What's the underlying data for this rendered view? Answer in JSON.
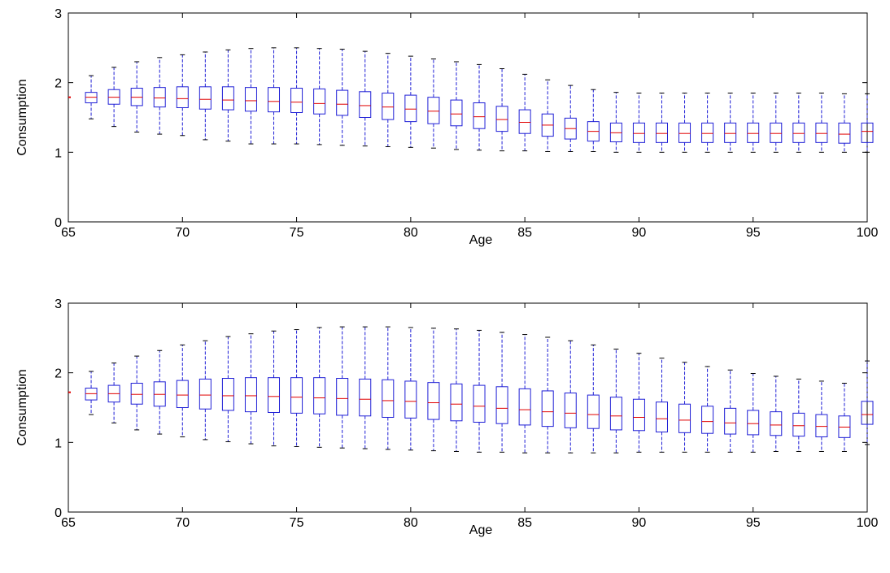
{
  "colors": {
    "box": "#1f1fd6",
    "median": "#e00000",
    "axis": "#000000",
    "background": "#ffffff"
  },
  "chart_data": [
    {
      "type": "boxplot",
      "xlabel": "Age",
      "ylabel": "Consumption",
      "xlim": [
        65,
        100
      ],
      "ylim": [
        0,
        3
      ],
      "xticks": [
        65,
        70,
        75,
        80,
        85,
        90,
        95,
        100
      ],
      "yticks": [
        0,
        1,
        2,
        3
      ],
      "grid": false,
      "points": [
        {
          "x": 65,
          "median": 1.79
        },
        {
          "x": 66,
          "min": 1.48,
          "q1": 1.71,
          "median": 1.79,
          "q3": 1.86,
          "max": 2.1
        },
        {
          "x": 67,
          "min": 1.37,
          "q1": 1.69,
          "median": 1.79,
          "q3": 1.9,
          "max": 2.22
        },
        {
          "x": 68,
          "min": 1.29,
          "q1": 1.67,
          "median": 1.79,
          "q3": 1.92,
          "max": 2.3
        },
        {
          "x": 69,
          "min": 1.26,
          "q1": 1.65,
          "median": 1.78,
          "q3": 1.93,
          "max": 2.36
        },
        {
          "x": 70,
          "min": 1.24,
          "q1": 1.64,
          "median": 1.77,
          "q3": 1.94,
          "max": 2.4
        },
        {
          "x": 71,
          "min": 1.18,
          "q1": 1.62,
          "median": 1.76,
          "q3": 1.94,
          "max": 2.44
        },
        {
          "x": 72,
          "min": 1.16,
          "q1": 1.61,
          "median": 1.75,
          "q3": 1.94,
          "max": 2.47
        },
        {
          "x": 73,
          "min": 1.12,
          "q1": 1.59,
          "median": 1.74,
          "q3": 1.93,
          "max": 2.49
        },
        {
          "x": 74,
          "min": 1.12,
          "q1": 1.58,
          "median": 1.73,
          "q3": 1.93,
          "max": 2.5
        },
        {
          "x": 75,
          "min": 1.12,
          "q1": 1.57,
          "median": 1.72,
          "q3": 1.92,
          "max": 2.5
        },
        {
          "x": 76,
          "min": 1.11,
          "q1": 1.55,
          "median": 1.7,
          "q3": 1.91,
          "max": 2.49
        },
        {
          "x": 77,
          "min": 1.1,
          "q1": 1.53,
          "median": 1.69,
          "q3": 1.89,
          "max": 2.48
        },
        {
          "x": 78,
          "min": 1.09,
          "q1": 1.5,
          "median": 1.67,
          "q3": 1.87,
          "max": 2.45
        },
        {
          "x": 79,
          "min": 1.08,
          "q1": 1.47,
          "median": 1.65,
          "q3": 1.85,
          "max": 2.42
        },
        {
          "x": 80,
          "min": 1.07,
          "q1": 1.44,
          "median": 1.62,
          "q3": 1.82,
          "max": 2.38
        },
        {
          "x": 81,
          "min": 1.06,
          "q1": 1.41,
          "median": 1.59,
          "q3": 1.79,
          "max": 2.34
        },
        {
          "x": 82,
          "min": 1.04,
          "q1": 1.38,
          "median": 1.55,
          "q3": 1.75,
          "max": 2.3
        },
        {
          "x": 83,
          "min": 1.03,
          "q1": 1.34,
          "median": 1.51,
          "q3": 1.71,
          "max": 2.26
        },
        {
          "x": 84,
          "min": 1.02,
          "q1": 1.3,
          "median": 1.47,
          "q3": 1.66,
          "max": 2.2
        },
        {
          "x": 85,
          "min": 1.02,
          "q1": 1.27,
          "median": 1.43,
          "q3": 1.61,
          "max": 2.12
        },
        {
          "x": 86,
          "min": 1.01,
          "q1": 1.23,
          "median": 1.39,
          "q3": 1.55,
          "max": 2.04
        },
        {
          "x": 87,
          "min": 1.01,
          "q1": 1.19,
          "median": 1.34,
          "q3": 1.49,
          "max": 1.96
        },
        {
          "x": 88,
          "min": 1.01,
          "q1": 1.16,
          "median": 1.3,
          "q3": 1.44,
          "max": 1.9
        },
        {
          "x": 89,
          "min": 1.0,
          "q1": 1.15,
          "median": 1.28,
          "q3": 1.42,
          "max": 1.86
        },
        {
          "x": 90,
          "min": 1.0,
          "q1": 1.14,
          "median": 1.27,
          "q3": 1.42,
          "max": 1.85
        },
        {
          "x": 91,
          "min": 1.0,
          "q1": 1.14,
          "median": 1.27,
          "q3": 1.42,
          "max": 1.85
        },
        {
          "x": 92,
          "min": 1.0,
          "q1": 1.14,
          "median": 1.27,
          "q3": 1.42,
          "max": 1.85
        },
        {
          "x": 93,
          "min": 1.0,
          "q1": 1.14,
          "median": 1.27,
          "q3": 1.42,
          "max": 1.85
        },
        {
          "x": 94,
          "min": 1.0,
          "q1": 1.14,
          "median": 1.27,
          "q3": 1.42,
          "max": 1.85
        },
        {
          "x": 95,
          "min": 1.0,
          "q1": 1.14,
          "median": 1.27,
          "q3": 1.42,
          "max": 1.85
        },
        {
          "x": 96,
          "min": 1.0,
          "q1": 1.14,
          "median": 1.27,
          "q3": 1.42,
          "max": 1.85
        },
        {
          "x": 97,
          "min": 1.0,
          "q1": 1.14,
          "median": 1.27,
          "q3": 1.42,
          "max": 1.85
        },
        {
          "x": 98,
          "min": 1.0,
          "q1": 1.14,
          "median": 1.27,
          "q3": 1.42,
          "max": 1.85
        },
        {
          "x": 99,
          "min": 1.0,
          "q1": 1.13,
          "median": 1.26,
          "q3": 1.42,
          "max": 1.84
        },
        {
          "x": 100,
          "min": 1.0,
          "q1": 1.14,
          "median": 1.3,
          "q3": 1.42,
          "max": 1.84
        }
      ]
    },
    {
      "type": "boxplot",
      "xlabel": "Age",
      "ylabel": "Consumption",
      "xlim": [
        65,
        100
      ],
      "ylim": [
        0,
        3
      ],
      "xticks": [
        65,
        70,
        75,
        80,
        85,
        90,
        95,
        100
      ],
      "yticks": [
        0,
        1,
        2,
        3
      ],
      "grid": false,
      "points": [
        {
          "x": 65,
          "median": 1.72
        },
        {
          "x": 66,
          "min": 1.4,
          "q1": 1.61,
          "median": 1.7,
          "q3": 1.78,
          "max": 2.02
        },
        {
          "x": 67,
          "min": 1.28,
          "q1": 1.58,
          "median": 1.7,
          "q3": 1.82,
          "max": 2.14
        },
        {
          "x": 68,
          "min": 1.18,
          "q1": 1.55,
          "median": 1.69,
          "q3": 1.85,
          "max": 2.24
        },
        {
          "x": 69,
          "min": 1.12,
          "q1": 1.52,
          "median": 1.69,
          "q3": 1.87,
          "max": 2.32
        },
        {
          "x": 70,
          "min": 1.08,
          "q1": 1.5,
          "median": 1.68,
          "q3": 1.89,
          "max": 2.4
        },
        {
          "x": 71,
          "min": 1.04,
          "q1": 1.48,
          "median": 1.68,
          "q3": 1.91,
          "max": 2.46
        },
        {
          "x": 72,
          "min": 1.01,
          "q1": 1.46,
          "median": 1.67,
          "q3": 1.92,
          "max": 2.52
        },
        {
          "x": 73,
          "min": 0.98,
          "q1": 1.44,
          "median": 1.67,
          "q3": 1.93,
          "max": 2.56
        },
        {
          "x": 74,
          "min": 0.95,
          "q1": 1.43,
          "median": 1.66,
          "q3": 1.93,
          "max": 2.6
        },
        {
          "x": 75,
          "min": 0.94,
          "q1": 1.42,
          "median": 1.65,
          "q3": 1.93,
          "max": 2.62
        },
        {
          "x": 76,
          "min": 0.93,
          "q1": 1.41,
          "median": 1.64,
          "q3": 1.93,
          "max": 2.65
        },
        {
          "x": 77,
          "min": 0.92,
          "q1": 1.39,
          "median": 1.63,
          "q3": 1.92,
          "max": 2.66
        },
        {
          "x": 78,
          "min": 0.91,
          "q1": 1.38,
          "median": 1.62,
          "q3": 1.91,
          "max": 2.66
        },
        {
          "x": 79,
          "min": 0.9,
          "q1": 1.36,
          "median": 1.6,
          "q3": 1.9,
          "max": 2.66
        },
        {
          "x": 80,
          "min": 0.89,
          "q1": 1.35,
          "median": 1.59,
          "q3": 1.88,
          "max": 2.65
        },
        {
          "x": 81,
          "min": 0.88,
          "q1": 1.33,
          "median": 1.57,
          "q3": 1.86,
          "max": 2.64
        },
        {
          "x": 82,
          "min": 0.87,
          "q1": 1.31,
          "median": 1.55,
          "q3": 1.84,
          "max": 2.63
        },
        {
          "x": 83,
          "min": 0.86,
          "q1": 1.29,
          "median": 1.52,
          "q3": 1.82,
          "max": 2.61
        },
        {
          "x": 84,
          "min": 0.86,
          "q1": 1.27,
          "median": 1.49,
          "q3": 1.8,
          "max": 2.58
        },
        {
          "x": 85,
          "min": 0.85,
          "q1": 1.25,
          "median": 1.47,
          "q3": 1.77,
          "max": 2.55
        },
        {
          "x": 86,
          "min": 0.85,
          "q1": 1.23,
          "median": 1.44,
          "q3": 1.74,
          "max": 2.51
        },
        {
          "x": 87,
          "min": 0.85,
          "q1": 1.21,
          "median": 1.42,
          "q3": 1.71,
          "max": 2.46
        },
        {
          "x": 88,
          "min": 0.85,
          "q1": 1.2,
          "median": 1.4,
          "q3": 1.68,
          "max": 2.4
        },
        {
          "x": 89,
          "min": 0.85,
          "q1": 1.18,
          "median": 1.38,
          "q3": 1.65,
          "max": 2.34
        },
        {
          "x": 90,
          "min": 0.86,
          "q1": 1.17,
          "median": 1.36,
          "q3": 1.62,
          "max": 2.28
        },
        {
          "x": 91,
          "min": 0.86,
          "q1": 1.15,
          "median": 1.34,
          "q3": 1.58,
          "max": 2.21
        },
        {
          "x": 92,
          "min": 0.86,
          "q1": 1.14,
          "median": 1.32,
          "q3": 1.55,
          "max": 2.15
        },
        {
          "x": 93,
          "min": 0.86,
          "q1": 1.13,
          "median": 1.3,
          "q3": 1.52,
          "max": 2.09
        },
        {
          "x": 94,
          "min": 0.86,
          "q1": 1.12,
          "median": 1.28,
          "q3": 1.49,
          "max": 2.04
        },
        {
          "x": 95,
          "min": 0.86,
          "q1": 1.11,
          "median": 1.27,
          "q3": 1.46,
          "max": 1.99
        },
        {
          "x": 96,
          "min": 0.87,
          "q1": 1.1,
          "median": 1.25,
          "q3": 1.44,
          "max": 1.95
        },
        {
          "x": 97,
          "min": 0.87,
          "q1": 1.09,
          "median": 1.24,
          "q3": 1.42,
          "max": 1.91
        },
        {
          "x": 98,
          "min": 0.87,
          "q1": 1.08,
          "median": 1.23,
          "q3": 1.4,
          "max": 1.88
        },
        {
          "x": 99,
          "min": 0.87,
          "q1": 1.07,
          "median": 1.22,
          "q3": 1.38,
          "max": 1.85
        },
        {
          "x": 100,
          "min": 0.97,
          "q1": 1.26,
          "median": 1.4,
          "q3": 1.59,
          "max": 2.17
        }
      ]
    }
  ]
}
